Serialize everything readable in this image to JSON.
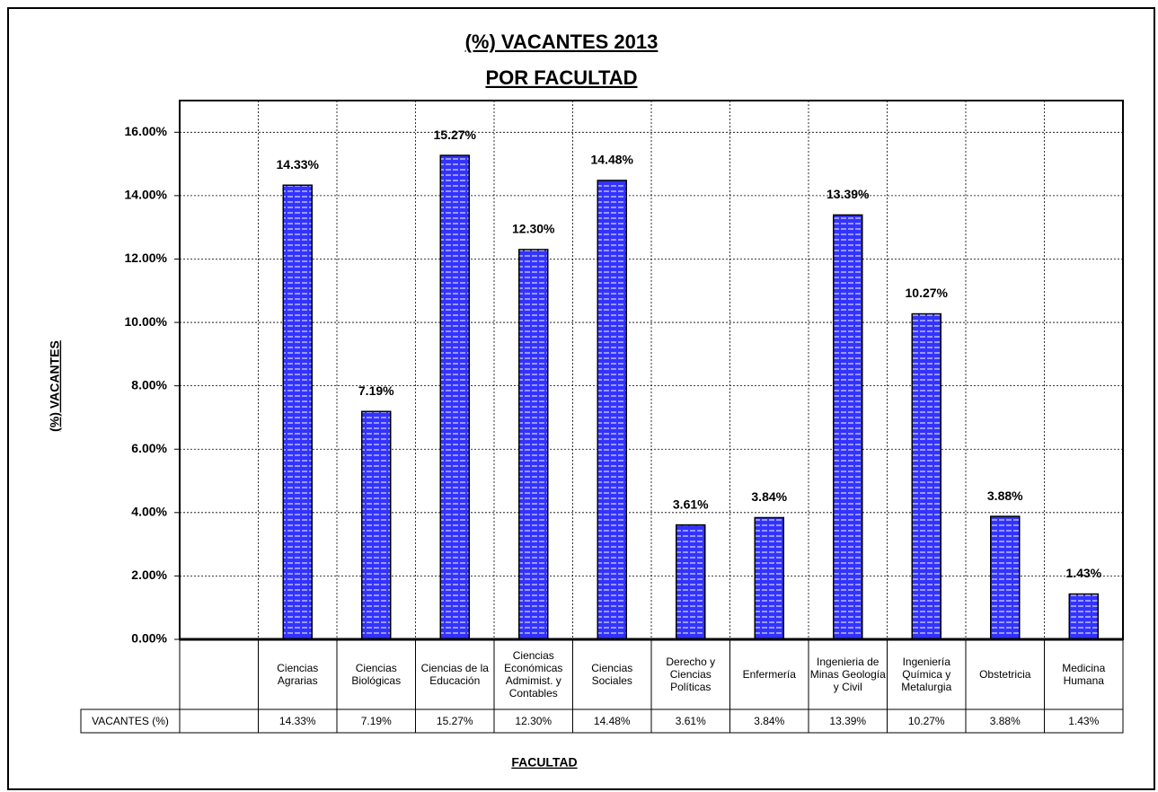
{
  "chart_data": {
    "type": "bar",
    "title": "(%) VACANTES 2013",
    "subtitle": "POR FACULTAD",
    "y_label": "(%) VACANTES",
    "x_label": "FACULTAD",
    "series_name": "VACANTES (%)",
    "categories": [
      null,
      "Ciencias Agrarias",
      "Ciencias Biológicas",
      "Ciencias de la Educación",
      "Ciencias Económicas Admimist. y Contables",
      "Ciencias Sociales",
      "Derecho y Ciencias Políticas",
      "Enfermería",
      "Ingenieria de Minas Geología y Civil",
      "Ingeniería Química y Metalurgia",
      "Obstetricia",
      "Medicina Humana"
    ],
    "values": [
      null,
      14.33,
      7.19,
      15.27,
      12.3,
      14.48,
      3.61,
      3.84,
      13.39,
      10.27,
      3.88,
      1.43
    ],
    "value_labels": [
      null,
      "14.33%",
      "7.19%",
      "15.27%",
      "12.30%",
      "14.48%",
      "3.61%",
      "3.84%",
      "13.39%",
      "10.27%",
      "3.88%",
      "1.43%"
    ],
    "color": "#3333ff",
    "ylim": [
      0,
      17
    ],
    "yticks": [
      {
        "value": 0,
        "label": "0.00%"
      },
      {
        "value": 2,
        "label": "2.00%"
      },
      {
        "value": 4,
        "label": "4.00%"
      },
      {
        "value": 6,
        "label": "6.00%"
      },
      {
        "value": 8,
        "label": "8.00%"
      },
      {
        "value": 10,
        "label": "10.00%"
      },
      {
        "value": 12,
        "label": "12.00%"
      },
      {
        "value": 14,
        "label": "14.00%"
      },
      {
        "value": 16,
        "label": "16.00%"
      }
    ],
    "grid": true
  }
}
